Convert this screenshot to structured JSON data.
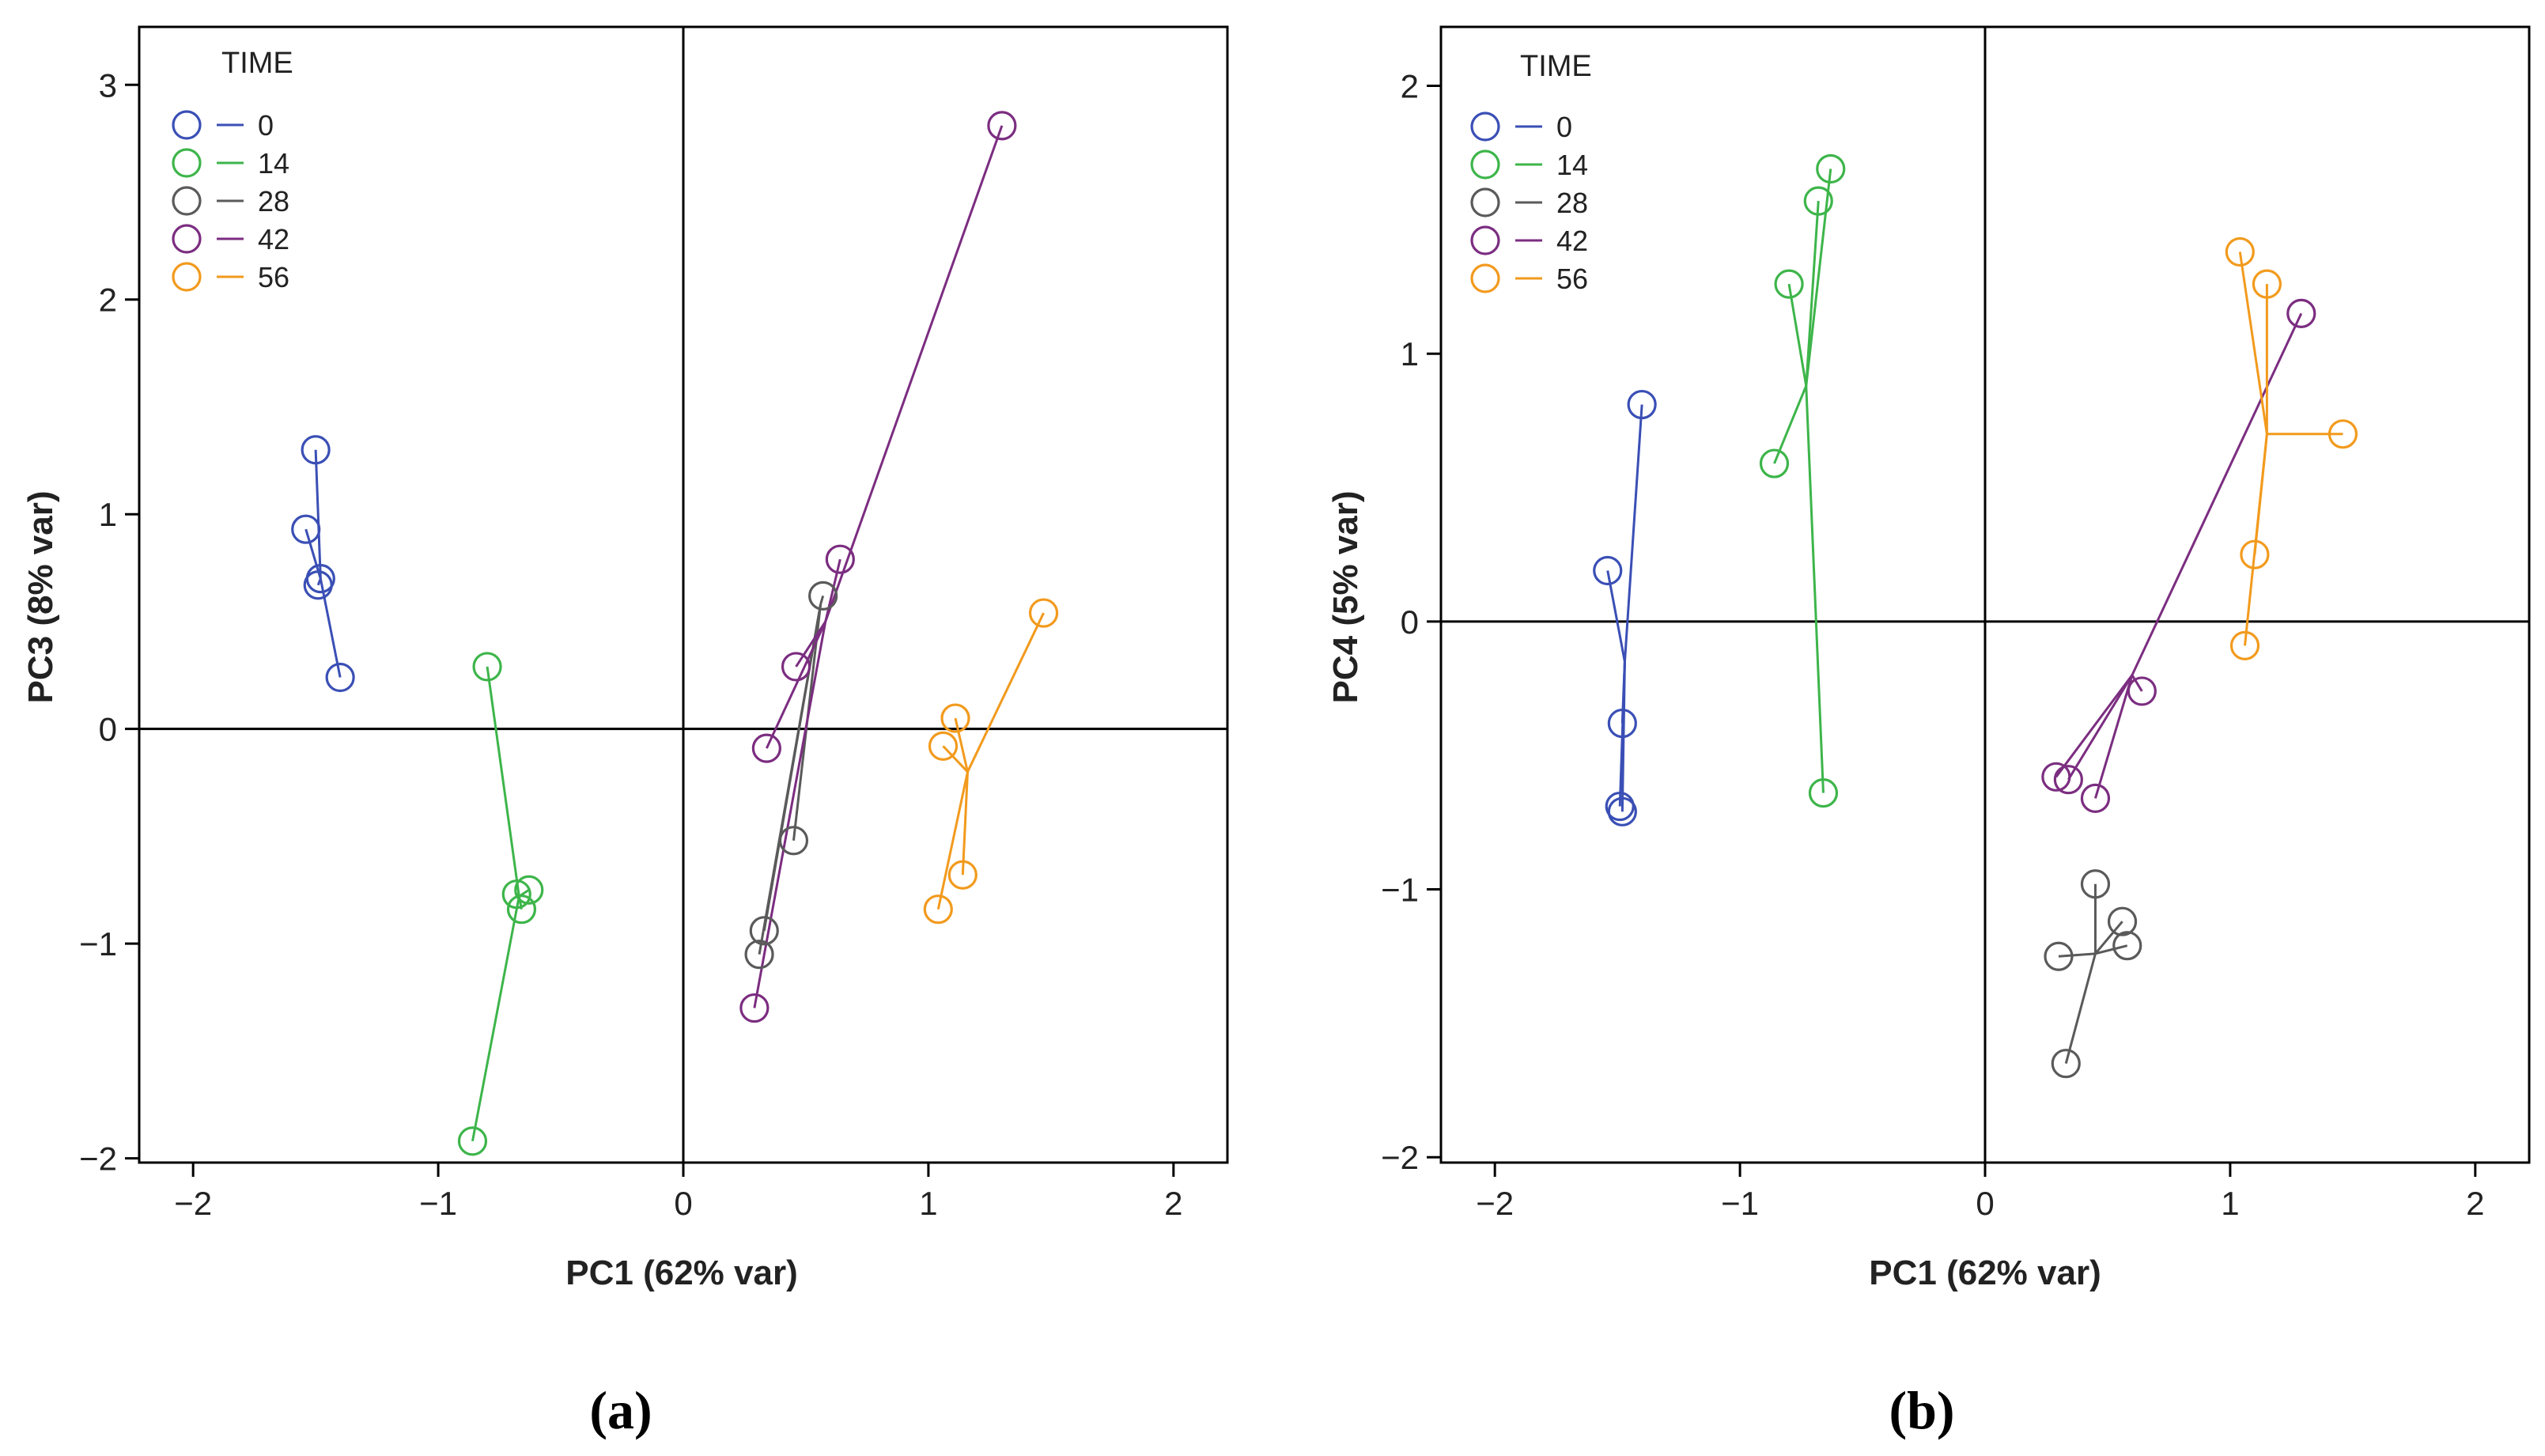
{
  "chart_data": [
    {
      "type": "scatter",
      "panel_label": "(a)",
      "xlabel": "PC1 (62% var)",
      "ylabel": "PC3 (8% var)",
      "xlim": [
        -2.22,
        2.22
      ],
      "ylim": [
        -2.02,
        3.27
      ],
      "xticks": [
        -2,
        -1,
        0,
        1,
        2
      ],
      "yticks": [
        -2,
        -1,
        0,
        1,
        2,
        3
      ],
      "legend_title": "TIME",
      "legend_position": "top-left",
      "reference_lines": {
        "x": 0,
        "y": 0
      },
      "series": [
        {
          "name": "0",
          "color": "#3a4fb5",
          "centroid": {
            "x": -1.48,
            "y": 0.7
          },
          "points": [
            {
              "x": -1.5,
              "y": 1.3
            },
            {
              "x": -1.54,
              "y": 0.93
            },
            {
              "x": -1.48,
              "y": 0.7
            },
            {
              "x": -1.49,
              "y": 0.67
            },
            {
              "x": -1.4,
              "y": 0.24
            }
          ]
        },
        {
          "name": "14",
          "color": "#3db54a",
          "centroid": {
            "x": -0.67,
            "y": -0.78
          },
          "points": [
            {
              "x": -0.8,
              "y": 0.29
            },
            {
              "x": -0.68,
              "y": -0.77
            },
            {
              "x": -0.63,
              "y": -0.75
            },
            {
              "x": -0.66,
              "y": -0.84
            },
            {
              "x": -0.86,
              "y": -1.92
            }
          ]
        },
        {
          "name": "28",
          "color": "#5a5a5a",
          "centroid": {
            "x": 0.56,
            "y": 0.58
          },
          "points": [
            {
              "x": 0.57,
              "y": 0.62
            },
            {
              "x": 0.45,
              "y": -0.52
            },
            {
              "x": 0.33,
              "y": -0.94
            },
            {
              "x": 0.31,
              "y": -1.05
            }
          ]
        },
        {
          "name": "42",
          "color": "#7b2d80",
          "centroid": {
            "x": 0.58,
            "y": 0.5
          },
          "points": [
            {
              "x": 1.3,
              "y": 2.81
            },
            {
              "x": 0.64,
              "y": 0.79
            },
            {
              "x": 0.46,
              "y": 0.29
            },
            {
              "x": 0.34,
              "y": -0.09
            },
            {
              "x": 0.29,
              "y": -1.3
            }
          ]
        },
        {
          "name": "56",
          "color": "#f29a1d",
          "centroid": {
            "x": 1.16,
            "y": -0.2
          },
          "points": [
            {
              "x": 1.47,
              "y": 0.54
            },
            {
              "x": 1.11,
              "y": 0.05
            },
            {
              "x": 1.06,
              "y": -0.08
            },
            {
              "x": 1.14,
              "y": -0.68
            },
            {
              "x": 1.04,
              "y": -0.84
            }
          ]
        }
      ]
    },
    {
      "type": "scatter",
      "panel_label": "(b)",
      "xlabel": "PC1 (62% var)",
      "ylabel": "PC4 (5% var)",
      "xlim": [
        -2.22,
        2.22
      ],
      "ylim": [
        -2.02,
        2.22
      ],
      "xticks": [
        -2,
        -1,
        0,
        1,
        2
      ],
      "yticks": [
        -2,
        -1,
        0,
        1,
        2
      ],
      "legend_title": "TIME",
      "legend_position": "top-left",
      "reference_lines": {
        "x": 0,
        "y": 0
      },
      "series": [
        {
          "name": "0",
          "color": "#3a4fb5",
          "centroid": {
            "x": -1.47,
            "y": -0.15
          },
          "points": [
            {
              "x": -1.4,
              "y": 0.81
            },
            {
              "x": -1.54,
              "y": 0.19
            },
            {
              "x": -1.48,
              "y": -0.38
            },
            {
              "x": -1.49,
              "y": -0.69
            },
            {
              "x": -1.48,
              "y": -0.71
            }
          ]
        },
        {
          "name": "14",
          "color": "#3db54a",
          "centroid": {
            "x": -0.73,
            "y": 0.88
          },
          "points": [
            {
              "x": -0.63,
              "y": 1.69
            },
            {
              "x": -0.68,
              "y": 1.57
            },
            {
              "x": -0.8,
              "y": 1.26
            },
            {
              "x": -0.86,
              "y": 0.59
            },
            {
              "x": -0.66,
              "y": -0.64
            }
          ]
        },
        {
          "name": "28",
          "color": "#5a5a5a",
          "centroid": {
            "x": 0.45,
            "y": -1.24
          },
          "points": [
            {
              "x": 0.45,
              "y": -0.98
            },
            {
              "x": 0.56,
              "y": -1.12
            },
            {
              "x": 0.58,
              "y": -1.21
            },
            {
              "x": 0.3,
              "y": -1.25
            },
            {
              "x": 0.33,
              "y": -1.65
            }
          ]
        },
        {
          "name": "42",
          "color": "#7b2d80",
          "centroid": {
            "x": 0.6,
            "y": -0.2
          },
          "points": [
            {
              "x": 1.29,
              "y": 1.15
            },
            {
              "x": 0.64,
              "y": -0.26
            },
            {
              "x": 0.29,
              "y": -0.58
            },
            {
              "x": 0.34,
              "y": -0.59
            },
            {
              "x": 0.45,
              "y": -0.66
            }
          ]
        },
        {
          "name": "56",
          "color": "#f29a1d",
          "centroid": {
            "x": 1.15,
            "y": 0.7
          },
          "points": [
            {
              "x": 1.04,
              "y": 1.38
            },
            {
              "x": 1.15,
              "y": 1.26
            },
            {
              "x": 1.46,
              "y": 0.7
            },
            {
              "x": 1.1,
              "y": 0.25
            },
            {
              "x": 1.06,
              "y": -0.09
            }
          ]
        }
      ]
    }
  ]
}
